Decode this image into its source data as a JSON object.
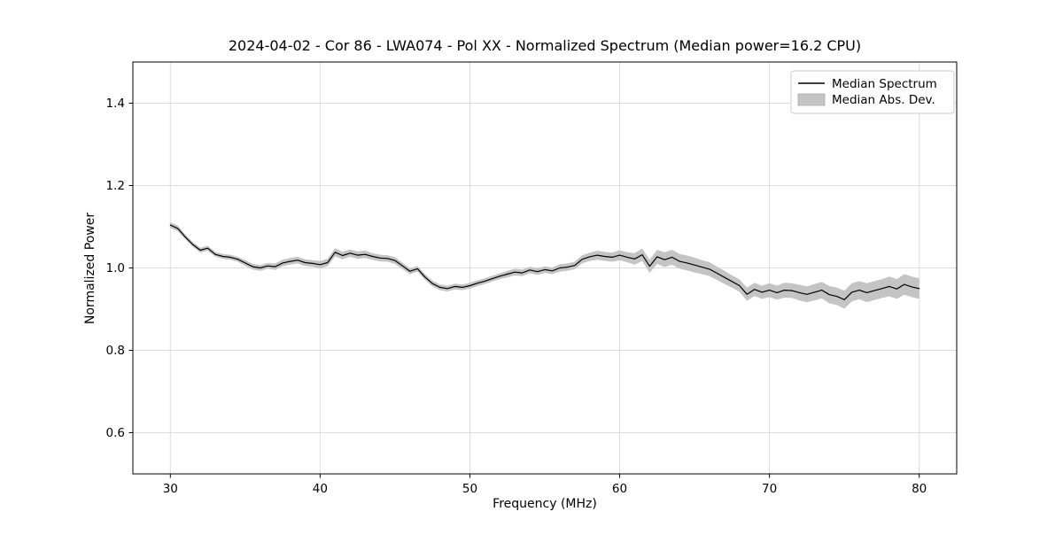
{
  "chart_data": {
    "type": "line",
    "title": "2024-04-02 - Cor 86 - LWA074 - Pol XX - Normalized Spectrum (Median power=16.2 CPU)",
    "xlabel": "Frequency (MHz)",
    "ylabel": "Normalized Power",
    "xlim": [
      27.5,
      82.5
    ],
    "ylim": [
      0.5,
      1.5
    ],
    "xticks": [
      30,
      40,
      50,
      60,
      70,
      80
    ],
    "xtick_labels": [
      "30",
      "40",
      "50",
      "60",
      "70",
      "80"
    ],
    "yticks": [
      0.6,
      0.8,
      1.0,
      1.2,
      1.4
    ],
    "ytick_labels": [
      "0.6",
      "0.8",
      "1.0",
      "1.2",
      "1.4"
    ],
    "grid": true,
    "legend_position": "upper right",
    "legend": [
      {
        "label": "Median Spectrum",
        "type": "line"
      },
      {
        "label": "Median Abs. Dev.",
        "type": "patch"
      }
    ],
    "colors": {
      "line": "#000000",
      "band": "#c4c4c4",
      "grid": "#dcdcdc",
      "frame": "#000000",
      "legend_border": "#cccccc"
    },
    "series": {
      "frequency": [
        30,
        30.5,
        31,
        31.5,
        32,
        32.5,
        33,
        33.5,
        34,
        34.5,
        35,
        35.5,
        36,
        36.5,
        37,
        37.5,
        38,
        38.5,
        39,
        39.5,
        40,
        40.5,
        41,
        41.5,
        42,
        42.5,
        43,
        43.5,
        44,
        44.5,
        45,
        45.5,
        46,
        46.5,
        47,
        47.5,
        48,
        48.5,
        49,
        49.5,
        50,
        50.5,
        51,
        51.5,
        52,
        52.5,
        53,
        53.5,
        54,
        54.5,
        55,
        55.5,
        56,
        56.5,
        57,
        57.5,
        58,
        58.5,
        59,
        59.5,
        60,
        60.5,
        61,
        61.5,
        62,
        62.5,
        63,
        63.5,
        64,
        64.5,
        65,
        65.5,
        66,
        66.5,
        67,
        67.5,
        68,
        68.5,
        69,
        69.5,
        70,
        70.5,
        71,
        71.5,
        72,
        72.5,
        73,
        73.5,
        74,
        74.5,
        75,
        75.5,
        76,
        76.5,
        77,
        77.5,
        78,
        78.5,
        79,
        79.5,
        80
      ],
      "power": [
        1.104,
        1.096,
        1.075,
        1.057,
        1.043,
        1.048,
        1.033,
        1.028,
        1.026,
        1.021,
        1.012,
        1.003,
        1.0,
        1.005,
        1.003,
        1.012,
        1.016,
        1.019,
        1.013,
        1.011,
        1.008,
        1.013,
        1.038,
        1.03,
        1.036,
        1.031,
        1.033,
        1.028,
        1.024,
        1.023,
        1.018,
        1.005,
        0.992,
        0.998,
        0.978,
        0.962,
        0.953,
        0.95,
        0.955,
        0.953,
        0.957,
        0.963,
        0.968,
        0.974,
        0.98,
        0.985,
        0.99,
        0.988,
        0.995,
        0.991,
        0.996,
        0.993,
        1.0,
        1.002,
        1.006,
        1.021,
        1.027,
        1.031,
        1.028,
        1.026,
        1.031,
        1.026,
        1.022,
        1.032,
        1.004,
        1.027,
        1.02,
        1.026,
        1.016,
        1.012,
        1.007,
        1.002,
        0.997,
        0.987,
        0.977,
        0.967,
        0.957,
        0.936,
        0.948,
        0.941,
        0.946,
        0.94,
        0.946,
        0.945,
        0.94,
        0.936,
        0.941,
        0.946,
        0.935,
        0.931,
        0.923,
        0.941,
        0.946,
        0.94,
        0.945,
        0.95,
        0.955,
        0.949,
        0.96,
        0.954,
        0.95
      ],
      "mad": [
        0.007,
        0.007,
        0.006,
        0.006,
        0.006,
        0.006,
        0.006,
        0.006,
        0.006,
        0.006,
        0.007,
        0.007,
        0.007,
        0.007,
        0.008,
        0.008,
        0.008,
        0.008,
        0.008,
        0.008,
        0.009,
        0.009,
        0.01,
        0.009,
        0.009,
        0.009,
        0.009,
        0.008,
        0.008,
        0.008,
        0.008,
        0.008,
        0.007,
        0.007,
        0.007,
        0.007,
        0.007,
        0.007,
        0.007,
        0.007,
        0.007,
        0.007,
        0.007,
        0.007,
        0.007,
        0.008,
        0.008,
        0.008,
        0.008,
        0.008,
        0.008,
        0.008,
        0.009,
        0.009,
        0.009,
        0.01,
        0.01,
        0.011,
        0.011,
        0.011,
        0.012,
        0.012,
        0.014,
        0.015,
        0.016,
        0.017,
        0.018,
        0.018,
        0.018,
        0.018,
        0.018,
        0.017,
        0.017,
        0.016,
        0.016,
        0.015,
        0.015,
        0.016,
        0.016,
        0.016,
        0.017,
        0.017,
        0.018,
        0.018,
        0.019,
        0.019,
        0.02,
        0.02,
        0.021,
        0.021,
        0.022,
        0.022,
        0.022,
        0.023,
        0.023,
        0.023,
        0.024,
        0.024,
        0.025,
        0.025,
        0.025
      ]
    }
  }
}
